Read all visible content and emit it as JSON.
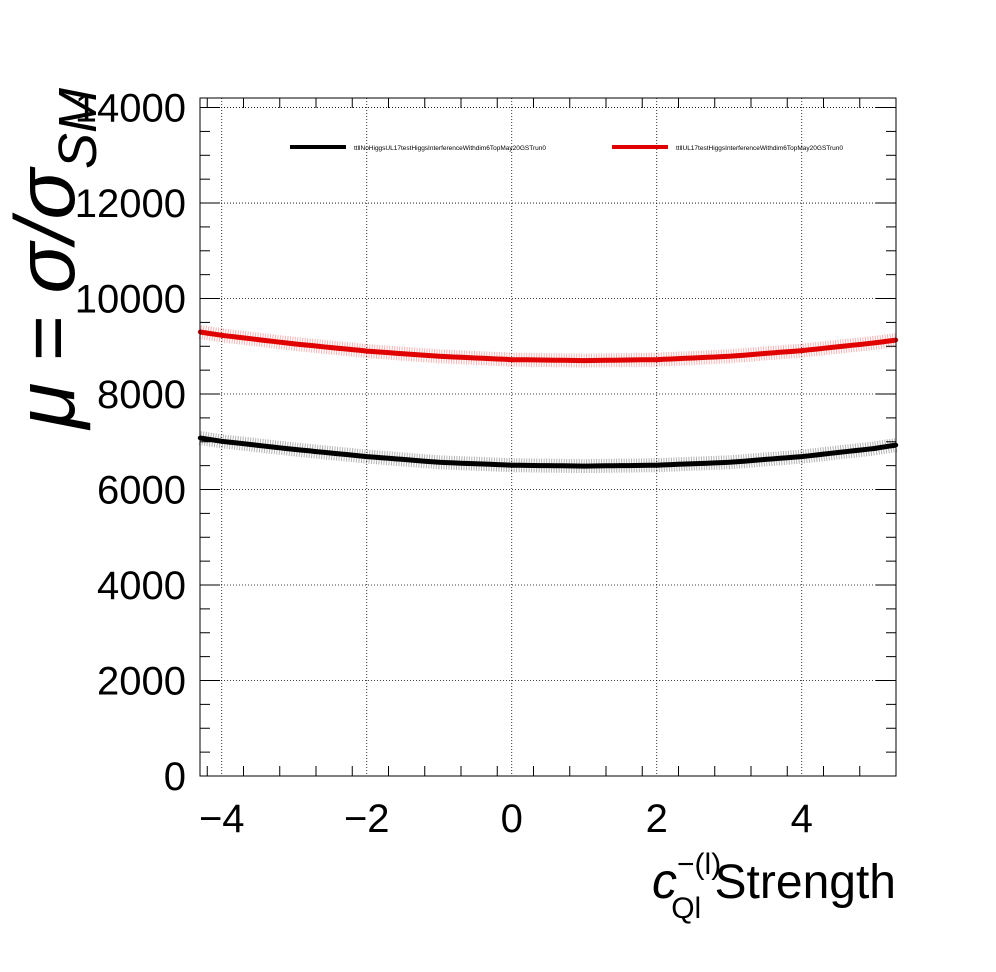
{
  "chart_data": {
    "type": "line",
    "title": "",
    "xlabel_main": "c",
    "xlabel_sup": "−(l)",
    "xlabel_sub": "Ql",
    "xlabel_tail": " Strength",
    "ylabel_mu": "μ",
    "ylabel_eq": " = ",
    "ylabel_sigma": "σ/σ",
    "ylabel_sub": "SM",
    "xlim": [
      -4.3,
      5.3
    ],
    "ylim": [
      0,
      14200
    ],
    "x_ticks": [
      -4,
      -2,
      0,
      2,
      4
    ],
    "x_tick_labels": [
      "−4",
      "−2",
      "0",
      "2",
      "4"
    ],
    "y_ticks": [
      0,
      2000,
      4000,
      6000,
      8000,
      10000,
      12000,
      14000
    ],
    "y_tick_labels": [
      "0",
      "2000",
      "4000",
      "6000",
      "8000",
      "10000",
      "12000",
      "14000"
    ],
    "grid": true,
    "legend_position": "top",
    "x": [
      -4.3,
      -4,
      -3,
      -2,
      -1,
      0,
      1,
      2,
      3,
      4,
      5,
      5.3
    ],
    "series": [
      {
        "name": "ttllNoHiggsUL17testHiggsInterferenceWithdim6TopMay20GSTrun0",
        "color": "#000000",
        "values": [
          7080,
          7010,
          6840,
          6690,
          6570,
          6510,
          6490,
          6510,
          6570,
          6690,
          6860,
          6930
        ]
      },
      {
        "name": "ttllUL17testHiggsInterferenceWithdim6TopMay20GSTrun0",
        "color": "#e00000",
        "values": [
          9300,
          9230,
          9050,
          8900,
          8790,
          8720,
          8700,
          8720,
          8790,
          8910,
          9070,
          9130
        ]
      }
    ]
  }
}
